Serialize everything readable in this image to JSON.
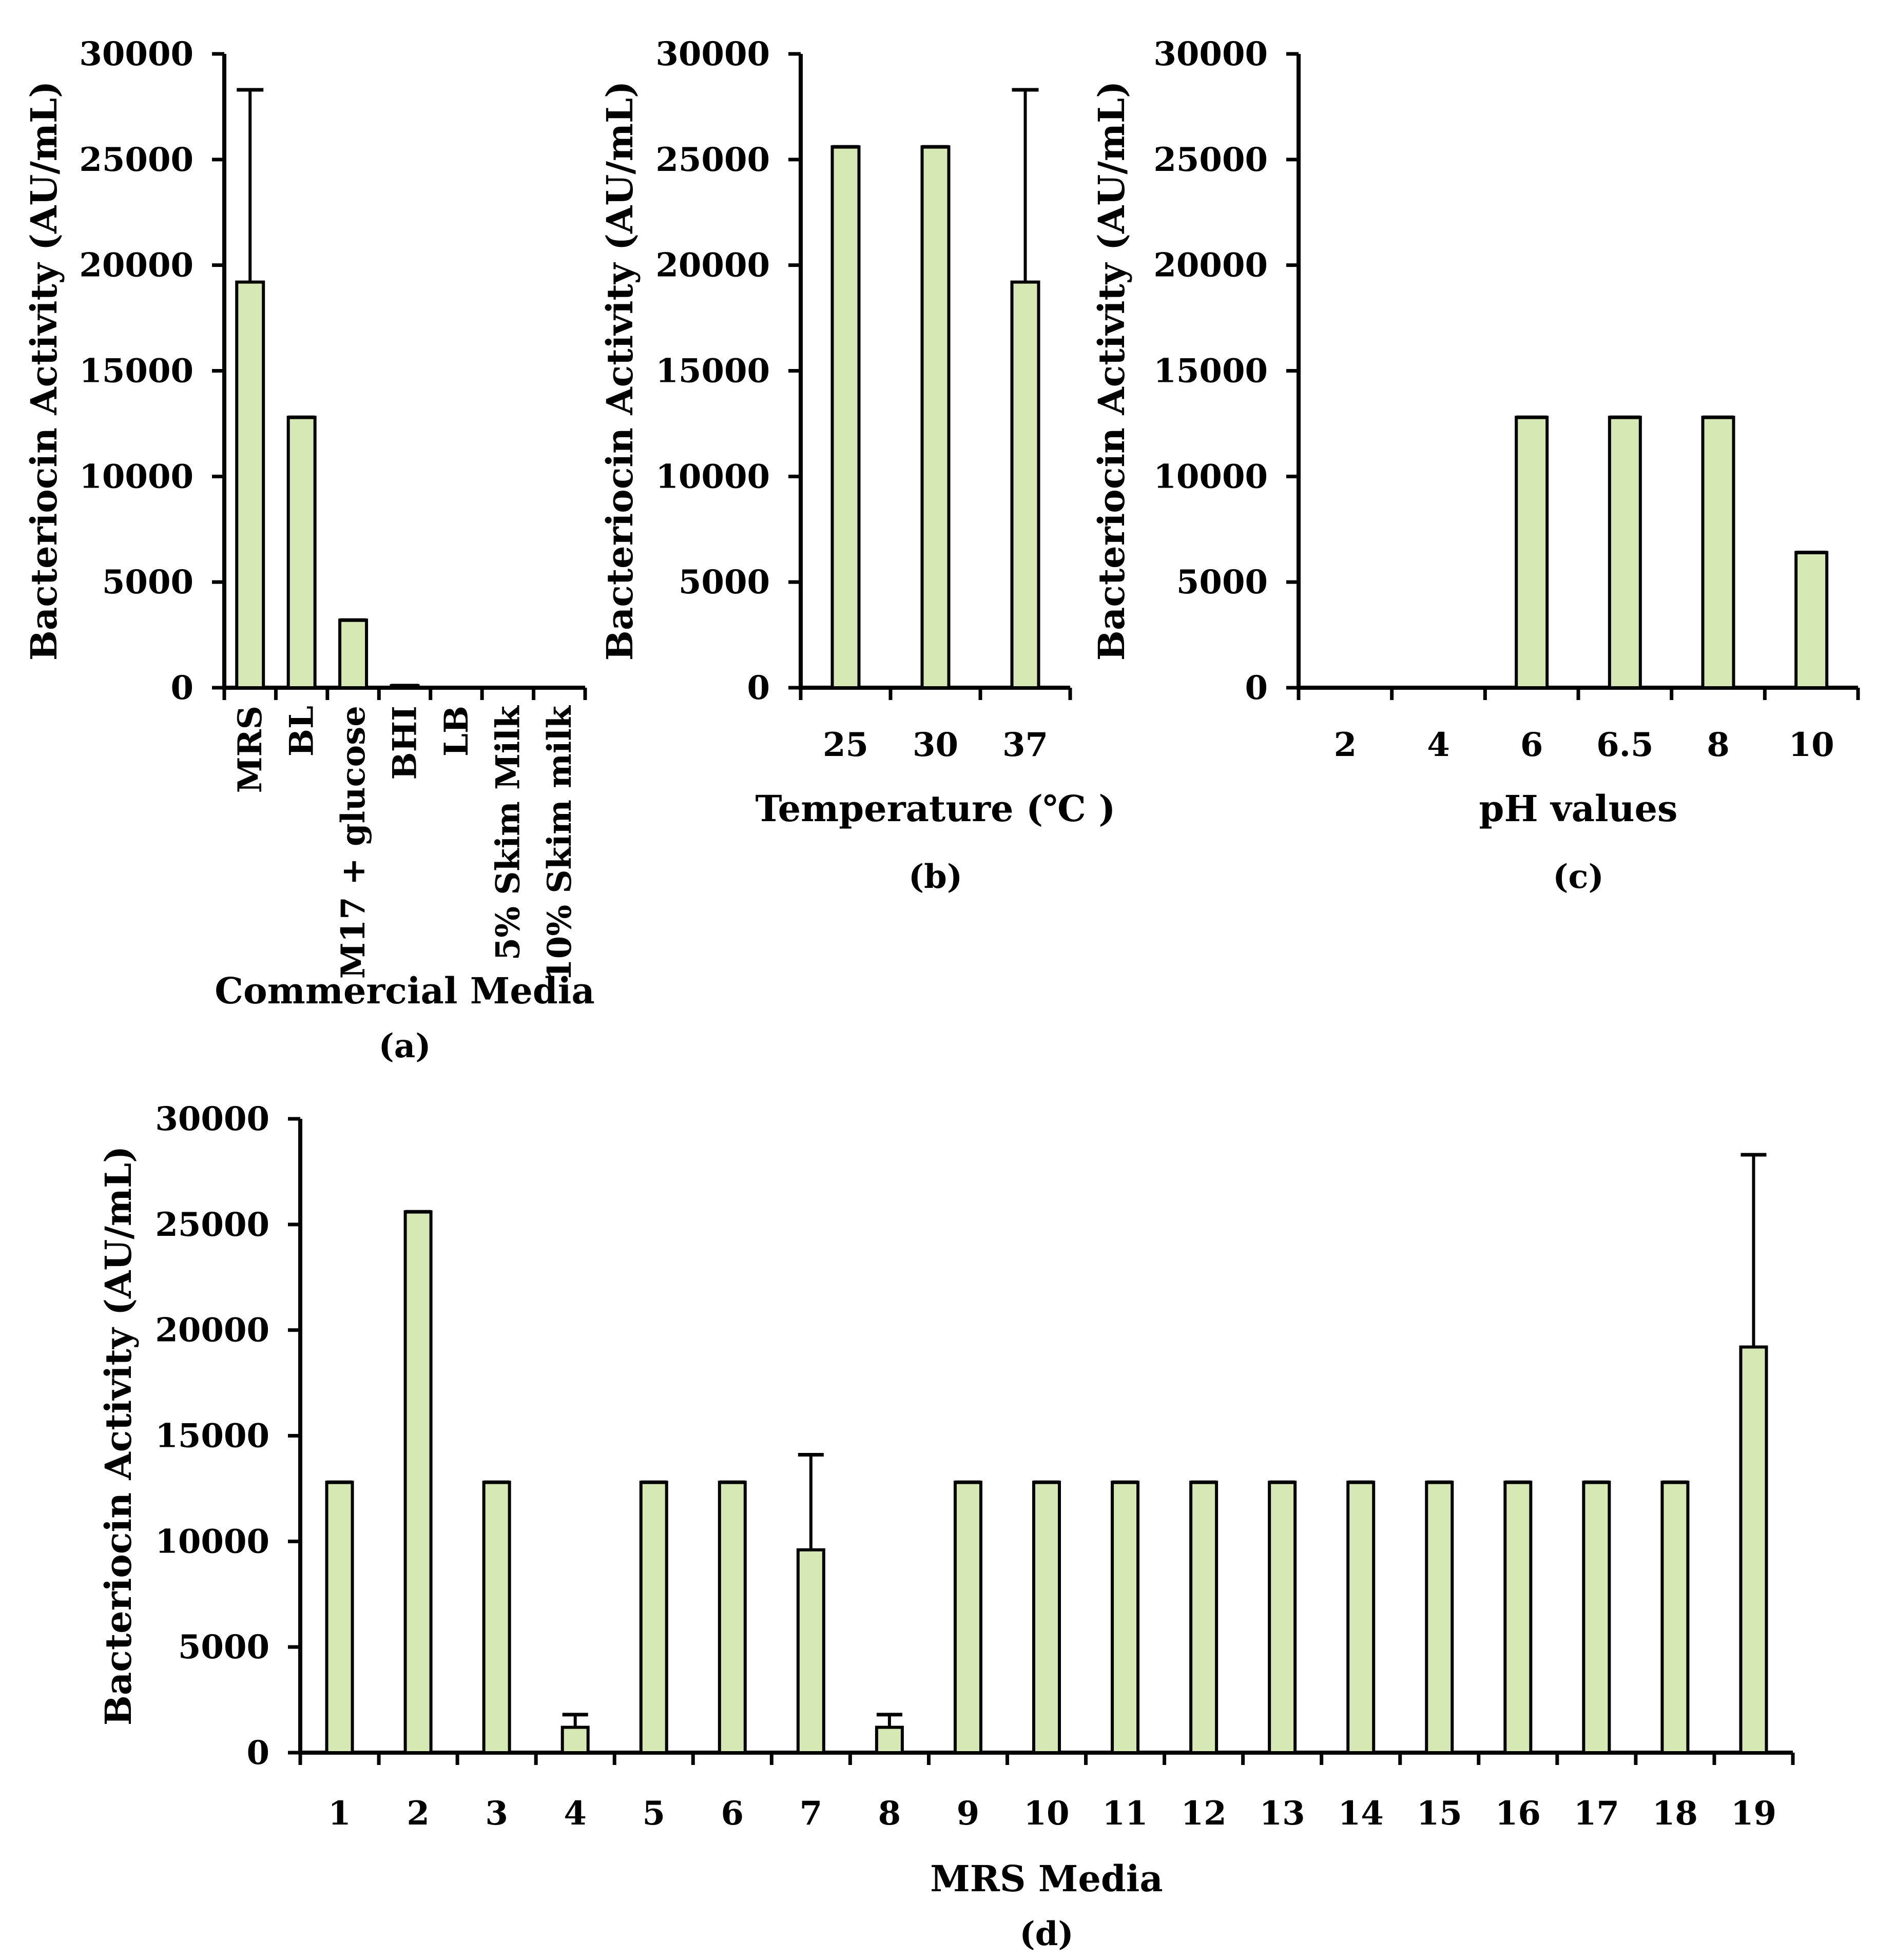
{
  "colors": {
    "bar_fill": "#D6E8B4",
    "bar_stroke": "#000000",
    "axis": "#000000",
    "error_bar": "#000000"
  },
  "chart_data": [
    {
      "id": "a",
      "type": "bar",
      "categories": [
        "MRS",
        "BL",
        "M17 + glucose",
        "BHI",
        "LB",
        "5% Skim Milk",
        "10% Skim milk"
      ],
      "values": [
        19200,
        12800,
        3200,
        100,
        0,
        0,
        0
      ],
      "error_plus": [
        9100,
        0,
        0,
        0,
        0,
        0,
        0
      ],
      "ylim": [
        0,
        30000
      ],
      "yticks": [
        "0",
        "5000",
        "10000",
        "15000",
        "20000",
        "25000",
        "30000"
      ],
      "xlabel": "Commercial Media",
      "ylabel": "Bacteriocin Activity (AU/mL)",
      "panel_label": "(a)"
    },
    {
      "id": "b",
      "type": "bar",
      "categories": [
        "25",
        "30",
        "37"
      ],
      "values": [
        25600,
        25600,
        19200
      ],
      "error_plus": [
        0,
        0,
        9100
      ],
      "ylim": [
        0,
        30000
      ],
      "yticks": [
        "0",
        "5000",
        "10000",
        "15000",
        "20000",
        "25000",
        "30000"
      ],
      "xlabel": "Temperature (℃ )",
      "ylabel": "Bacteriocin Activity (AU/mL)",
      "panel_label": "(b)"
    },
    {
      "id": "c",
      "type": "bar",
      "categories": [
        "2",
        "4",
        "6",
        "6.5",
        "8",
        "10"
      ],
      "values": [
        0,
        0,
        12800,
        12800,
        12800,
        6400
      ],
      "error_plus": [
        0,
        0,
        0,
        0,
        0,
        0
      ],
      "ylim": [
        0,
        30000
      ],
      "yticks": [
        "0",
        "5000",
        "10000",
        "15000",
        "20000",
        "25000",
        "30000"
      ],
      "xlabel": "pH values",
      "ylabel": "Bacteriocin Activity (AU/mL)",
      "panel_label": "(c)"
    },
    {
      "id": "d",
      "type": "bar",
      "categories": [
        "1",
        "2",
        "3",
        "4",
        "5",
        "6",
        "7",
        "8",
        "9",
        "10",
        "11",
        "12",
        "13",
        "14",
        "15",
        "16",
        "17",
        "18",
        "19"
      ],
      "values": [
        12800,
        25600,
        12800,
        1200,
        12800,
        12800,
        9600,
        1200,
        12800,
        12800,
        12800,
        12800,
        12800,
        12800,
        12800,
        12800,
        12800,
        12800,
        19200
      ],
      "error_plus": [
        0,
        0,
        0,
        600,
        0,
        0,
        4500,
        600,
        0,
        0,
        0,
        0,
        0,
        0,
        0,
        0,
        0,
        0,
        9100
      ],
      "ylim": [
        0,
        30000
      ],
      "yticks": [
        "0",
        "5000",
        "10000",
        "15000",
        "20000",
        "25000",
        "30000"
      ],
      "xlabel": "MRS Media",
      "ylabel": "Bacteriocin Activity (AU/mL)",
      "panel_label": "(d)"
    }
  ]
}
